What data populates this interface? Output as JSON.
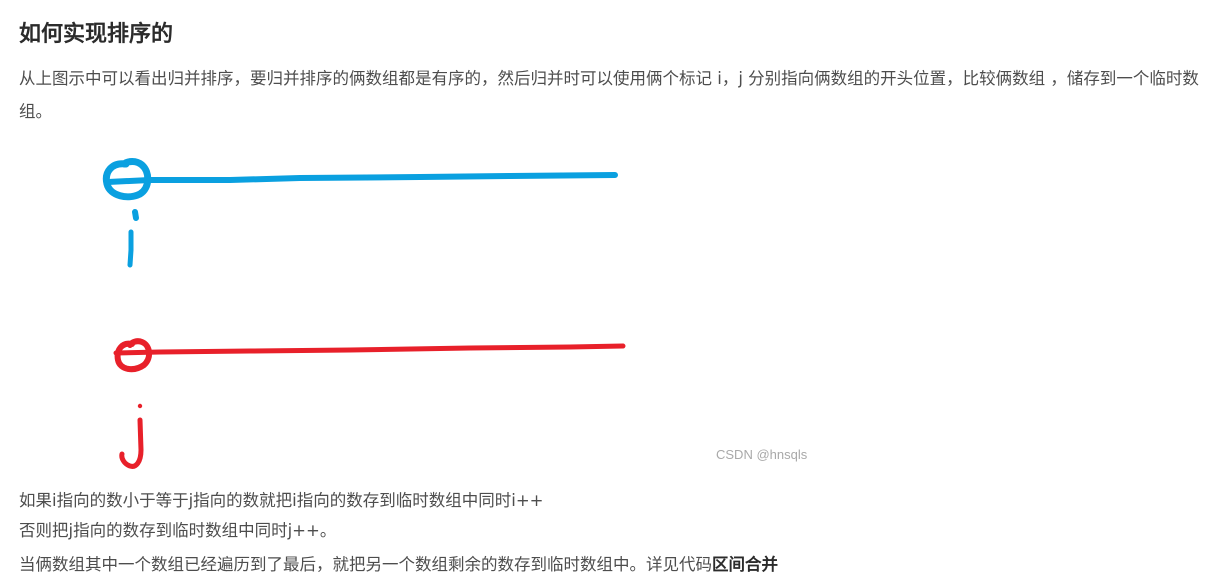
{
  "article": {
    "heading": "如何实现排序的",
    "intro": "从上图示中可以看出归并排序，要归并排序的俩数组都是有序的，然后归并时可以使用俩个标记 i，j 分别指向俩数组的开头位置，比较俩数组 ，储存到一个临时数组。",
    "figure": {
      "label_i": "i",
      "label_j": "j",
      "watermark": "CSDN @hnsqls",
      "colors": {
        "pointer_i": "#0aa0e0",
        "pointer_j": "#e8202a"
      }
    },
    "lines": [
      "如果i指向的数小于等于j指向的数就把i指向的数存到临时数组中同时i++",
      "否则把j指向的数存到临时数组中同时j++。"
    ],
    "last_line_prefix": "当俩数组其中一个数组已经遍历到了最后，就把另一个数组剩余的数存到临时数组中。详见代码",
    "code_link_text": "区间合并"
  }
}
